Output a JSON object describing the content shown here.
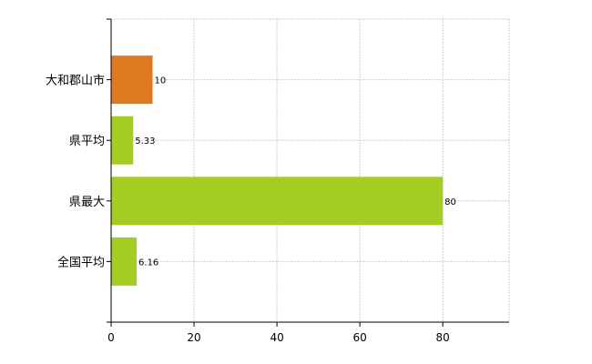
{
  "chart_data": {
    "type": "bar",
    "orientation": "horizontal",
    "categories": [
      "大和郡山市",
      "県平均",
      "県最大",
      "全国平均"
    ],
    "values": [
      10,
      5.33,
      80,
      6.16
    ],
    "value_labels": [
      "10",
      "5.33",
      "80",
      "6.16"
    ],
    "bar_colors": [
      "#e07a22",
      "#a3cd23",
      "#a3cd23",
      "#a3cd23"
    ],
    "highlight_color": "#e07a22",
    "base_color": "#a3cd23",
    "xlim": [
      0,
      96
    ],
    "xticks": [
      0,
      20,
      40,
      60,
      80
    ],
    "xtick_labels": [
      "0",
      "20",
      "40",
      "60",
      "80"
    ],
    "grid": true,
    "title": "",
    "xlabel": "",
    "ylabel": ""
  }
}
